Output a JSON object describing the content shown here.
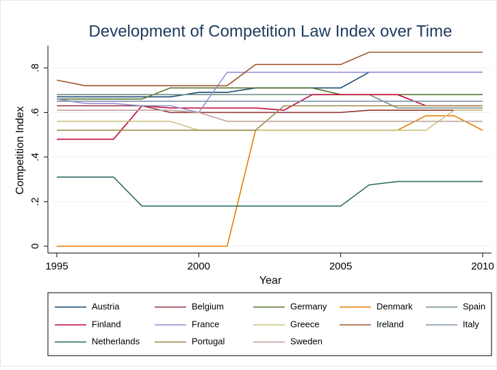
{
  "chart_data": {
    "type": "line",
    "title": "Development of Competition Law Index over Time",
    "x_label": "Year",
    "y_label": "Competition Index",
    "x": [
      1995,
      1996,
      1997,
      1998,
      1999,
      2000,
      2001,
      2002,
      2003,
      2004,
      2005,
      2006,
      2007,
      2008,
      2009,
      2010
    ],
    "xlim": [
      1995,
      2010
    ],
    "xticks": [
      1995,
      2000,
      2005,
      2010
    ],
    "ylim": [
      0,
      0.9
    ],
    "yticks": [
      0,
      {
        "value": 0.2,
        "label": ".2"
      },
      {
        "value": 0.4,
        "label": ".4"
      },
      {
        "value": 0.6,
        "label": ".6"
      },
      {
        "value": 0.8,
        "label": ".8"
      }
    ],
    "grid": true,
    "series": [
      {
        "name": "Austria",
        "color": "#1a476f",
        "values": [
          0.67,
          0.67,
          0.67,
          0.67,
          0.67,
          0.69,
          0.69,
          0.71,
          0.71,
          0.71,
          0.71,
          0.78,
          0.78,
          0.78,
          0.78,
          0.78
        ]
      },
      {
        "name": "Belgium",
        "color": "#90353b",
        "values": [
          0.63,
          0.63,
          0.63,
          0.63,
          0.6,
          0.6,
          0.6,
          0.6,
          0.6,
          0.6,
          0.6,
          0.61,
          0.61,
          0.61,
          0.61,
          0.61
        ]
      },
      {
        "name": "Germany",
        "color": "#55752f",
        "values": [
          0.66,
          0.66,
          0.66,
          0.66,
          0.71,
          0.71,
          0.71,
          0.71,
          0.71,
          0.71,
          0.68,
          0.68,
          0.68,
          0.68,
          0.68,
          0.68
        ]
      },
      {
        "name": "Denmark",
        "color": "#e37e00",
        "values": [
          0,
          0,
          0,
          0,
          0,
          0,
          0,
          0.52,
          0.52,
          0.52,
          0.52,
          0.52,
          0.52,
          0.585,
          0.585,
          0.52
        ]
      },
      {
        "name": "Spain",
        "color": "#6e8e84",
        "values": [
          0.68,
          0.68,
          0.68,
          0.68,
          0.68,
          0.68,
          0.68,
          0.68,
          0.68,
          0.68,
          0.68,
          0.68,
          0.62,
          0.62,
          0.62,
          0.62
        ]
      },
      {
        "name": "Finland",
        "color": "#c10534",
        "values": [
          0.48,
          0.48,
          0.48,
          0.63,
          0.62,
          0.62,
          0.62,
          0.62,
          0.61,
          0.68,
          0.68,
          0.68,
          0.68,
          0.63,
          0.63,
          0.63
        ]
      },
      {
        "name": "France",
        "color": "#938dd2",
        "values": [
          0.66,
          0.64,
          0.64,
          0.63,
          0.63,
          0.6,
          0.78,
          0.78,
          0.78,
          0.78,
          0.78,
          0.78,
          0.78,
          0.78,
          0.78,
          0.78
        ]
      },
      {
        "name": "Greece",
        "color": "#cac27e",
        "values": [
          0.56,
          0.56,
          0.56,
          0.56,
          0.56,
          0.52,
          0.52,
          0.52,
          0.52,
          0.52,
          0.52,
          0.52,
          0.52,
          0.52,
          0.61,
          0.61
        ]
      },
      {
        "name": "Ireland",
        "color": "#a0522d",
        "values": [
          0.745,
          0.72,
          0.72,
          0.72,
          0.72,
          0.72,
          0.72,
          0.815,
          0.815,
          0.815,
          0.815,
          0.87,
          0.87,
          0.87,
          0.87,
          0.87
        ]
      },
      {
        "name": "Italy",
        "color": "#7b92a8",
        "values": [
          0.65,
          0.65,
          0.65,
          0.65,
          0.65,
          0.65,
          0.65,
          0.65,
          0.65,
          0.65,
          0.65,
          0.65,
          0.65,
          0.65,
          0.65,
          0.65
        ]
      },
      {
        "name": "Netherlands",
        "color": "#2d6d66",
        "values": [
          0.31,
          0.31,
          0.31,
          0.18,
          0.18,
          0.18,
          0.18,
          0.18,
          0.18,
          0.18,
          0.18,
          0.275,
          0.29,
          0.29,
          0.29,
          0.29
        ]
      },
      {
        "name": "Portugal",
        "color": "#9c8847",
        "values": [
          0.52,
          0.52,
          0.52,
          0.52,
          0.52,
          0.52,
          0.52,
          0.52,
          0.63,
          0.63,
          0.63,
          0.63,
          0.63,
          0.63,
          0.63,
          0.63
        ]
      },
      {
        "name": "Sweden",
        "color": "#bfa19c",
        "values": [
          0.61,
          0.61,
          0.61,
          0.61,
          0.61,
          0.6,
          0.56,
          0.56,
          0.56,
          0.56,
          0.56,
          0.56,
          0.56,
          0.56,
          0.56,
          0.56
        ]
      }
    ]
  }
}
